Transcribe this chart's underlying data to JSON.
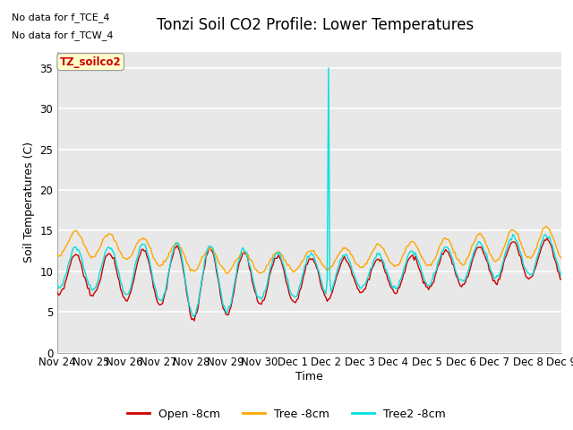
{
  "title": "Tonzi Soil CO2 Profile: Lower Temperatures",
  "ylabel": "Soil Temperatures (C)",
  "xlabel": "Time",
  "annotations": [
    "No data for f_TCE_4",
    "No data for f_TCW_4"
  ],
  "legend_label": "TZ_soilco2",
  "line_labels": [
    "Open -8cm",
    "Tree -8cm",
    "Tree2 -8cm"
  ],
  "line_colors": [
    "#cc0000",
    "#ffa500",
    "#00e0e0"
  ],
  "ylim": [
    0,
    37
  ],
  "yticks": [
    0,
    5,
    10,
    15,
    20,
    25,
    30,
    35
  ],
  "bg_color": "#e8e8e8",
  "grid_color": "#ffffff",
  "title_fontsize": 12,
  "axis_fontsize": 9,
  "tick_fontsize": 8.5
}
